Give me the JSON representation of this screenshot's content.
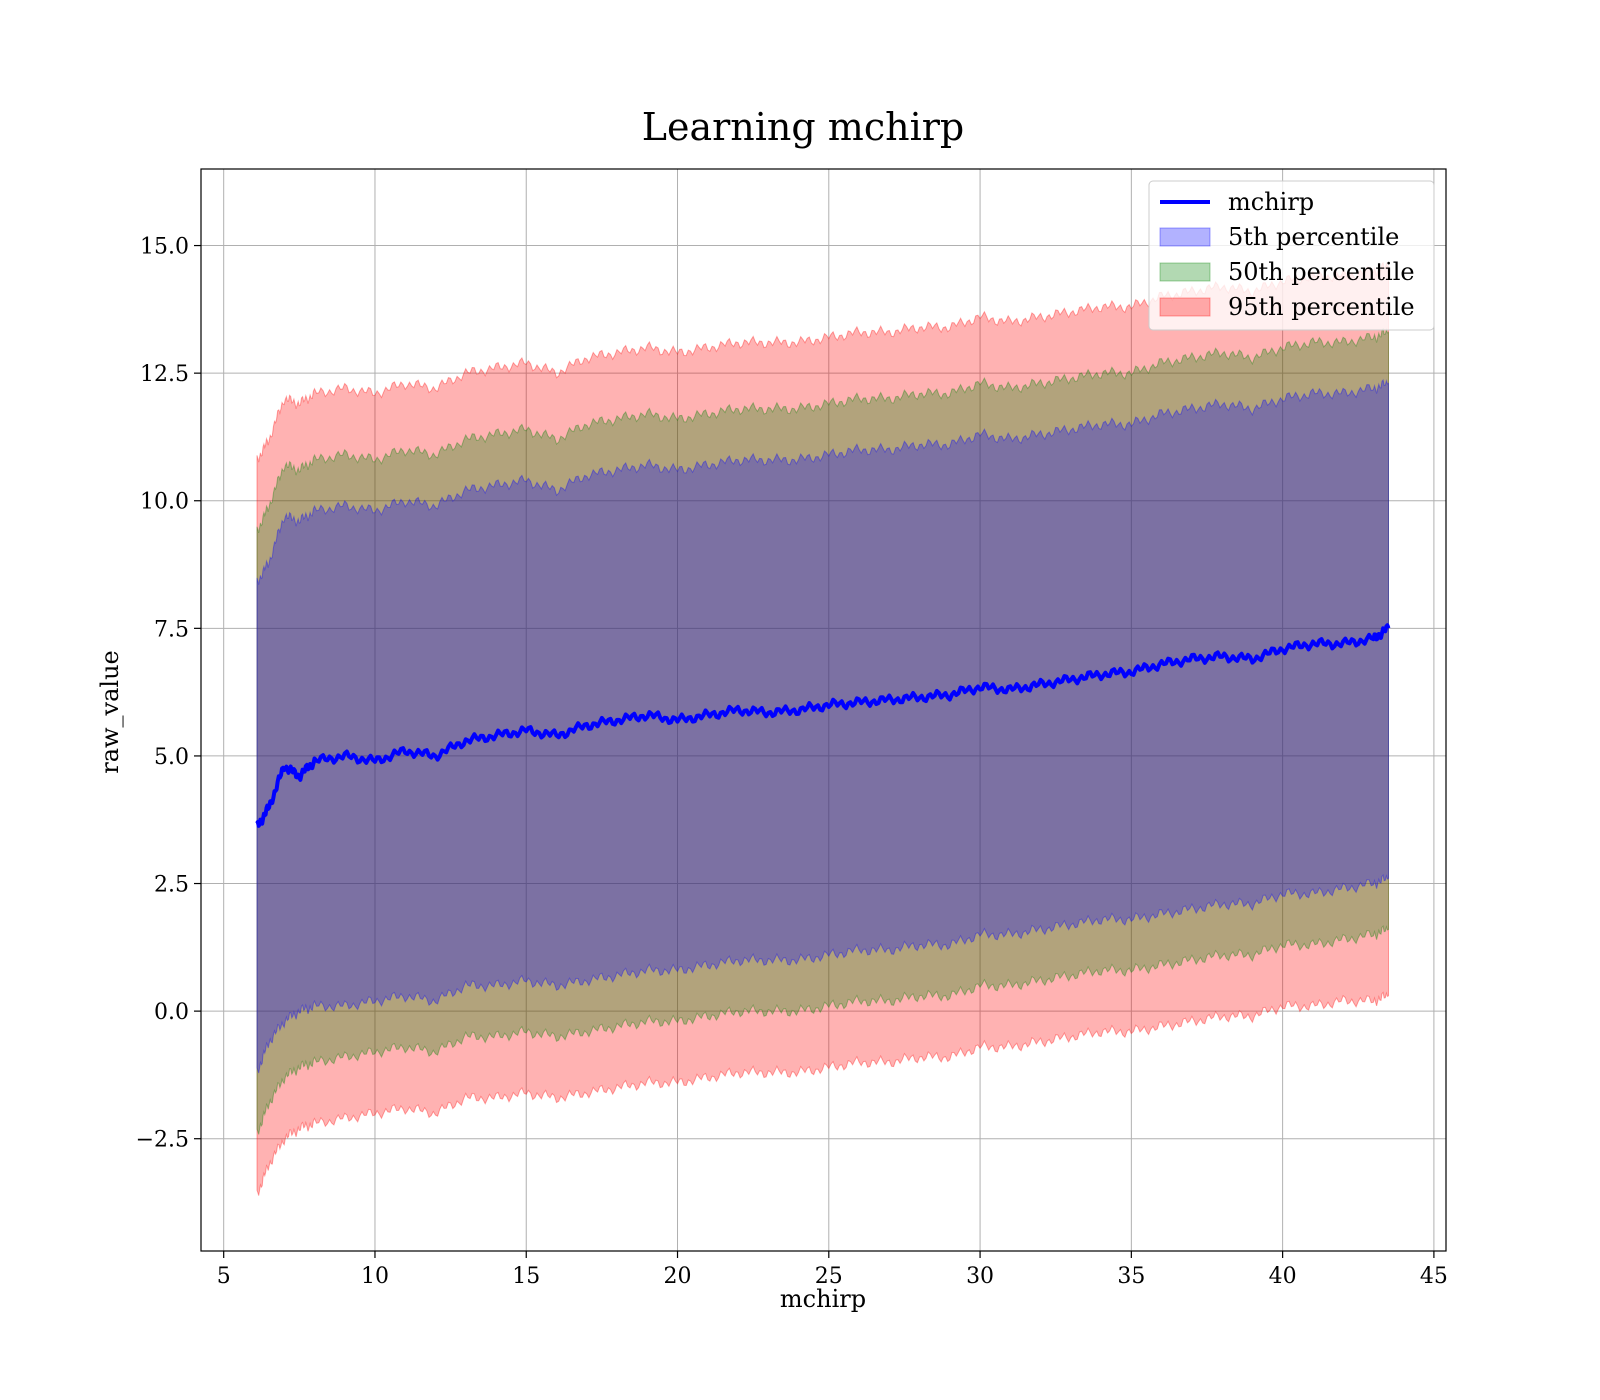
{
  "chart_data": {
    "type": "line",
    "title": "Learning mchirp",
    "xlabel": "mchirp",
    "ylabel": "raw_value",
    "xlim": [
      4.25,
      45.4
    ],
    "ylim": [
      -4.7,
      16.5
    ],
    "xticks": [
      5,
      10,
      15,
      20,
      25,
      30,
      35,
      40,
      45
    ],
    "xtick_labels": [
      "5",
      "10",
      "15",
      "20",
      "25",
      "30",
      "35",
      "40",
      "45"
    ],
    "yticks": [
      -2.5,
      0.0,
      2.5,
      5.0,
      7.5,
      10.0,
      12.5,
      15.0
    ],
    "ytick_labels": [
      "−2.5",
      "0.0",
      "2.5",
      "5.0",
      "7.5",
      "10.0",
      "12.5",
      "15.0"
    ],
    "grid": true,
    "legend_position": "top-right",
    "legend": [
      {
        "label": "mchirp",
        "kind": "line",
        "color": "#0000ff"
      },
      {
        "label": "5th percentile",
        "kind": "band",
        "color": "#0000ff"
      },
      {
        "label": "50th percentile",
        "kind": "band",
        "color": "#008000"
      },
      {
        "label": "95th percentile",
        "kind": "band",
        "color": "#ff0000"
      }
    ],
    "x": [
      6.1,
      6.5,
      7.0,
      7.5,
      8,
      9,
      10,
      11,
      12,
      13,
      14,
      15,
      16,
      17,
      18,
      19,
      20,
      21,
      22,
      23,
      24,
      25,
      26,
      27,
      28,
      29,
      30,
      31,
      32,
      33,
      34,
      35,
      36,
      37,
      38,
      39,
      40,
      41,
      42,
      43,
      43.5
    ],
    "series": [
      {
        "name": "mchirp",
        "color": "#0000ff",
        "values": [
          3.6,
          4.0,
          4.8,
          4.6,
          4.9,
          5.0,
          4.9,
          5.1,
          5.0,
          5.3,
          5.4,
          5.5,
          5.4,
          5.6,
          5.7,
          5.8,
          5.7,
          5.8,
          5.9,
          5.85,
          5.9,
          6.0,
          6.05,
          6.1,
          6.15,
          6.2,
          6.35,
          6.3,
          6.4,
          6.5,
          6.6,
          6.65,
          6.8,
          6.9,
          6.95,
          6.9,
          7.1,
          7.2,
          7.2,
          7.3,
          7.5
        ]
      },
      {
        "name": "5th percentile",
        "color": "#0000ff",
        "lower": [
          -1.2,
          -0.6,
          -0.2,
          0.0,
          0.1,
          0.1,
          0.2,
          0.3,
          0.2,
          0.5,
          0.5,
          0.6,
          0.5,
          0.6,
          0.7,
          0.8,
          0.8,
          0.9,
          1.0,
          1.0,
          1.0,
          1.1,
          1.2,
          1.2,
          1.3,
          1.3,
          1.5,
          1.5,
          1.6,
          1.7,
          1.8,
          1.8,
          1.9,
          2.0,
          2.1,
          2.1,
          2.3,
          2.3,
          2.4,
          2.5,
          2.6
        ],
        "upper": [
          8.4,
          8.8,
          9.7,
          9.6,
          9.8,
          9.9,
          9.8,
          10.0,
          9.9,
          10.2,
          10.3,
          10.4,
          10.2,
          10.5,
          10.6,
          10.7,
          10.6,
          10.7,
          10.8,
          10.8,
          10.8,
          10.9,
          11.0,
          11.0,
          11.1,
          11.1,
          11.3,
          11.2,
          11.3,
          11.4,
          11.5,
          11.5,
          11.7,
          11.8,
          11.9,
          11.8,
          12.0,
          12.1,
          12.1,
          12.2,
          12.3
        ]
      },
      {
        "name": "50th percentile",
        "color": "#008000",
        "lower": [
          -2.4,
          -1.8,
          -1.3,
          -1.1,
          -1.0,
          -0.9,
          -0.8,
          -0.7,
          -0.8,
          -0.5,
          -0.5,
          -0.4,
          -0.5,
          -0.4,
          -0.3,
          -0.2,
          -0.2,
          -0.1,
          0.0,
          0.0,
          0.0,
          0.1,
          0.2,
          0.2,
          0.3,
          0.3,
          0.5,
          0.5,
          0.6,
          0.7,
          0.8,
          0.8,
          0.9,
          1.0,
          1.1,
          1.1,
          1.3,
          1.3,
          1.4,
          1.5,
          1.6
        ],
        "upper": [
          9.4,
          9.9,
          10.7,
          10.6,
          10.8,
          10.9,
          10.8,
          11.0,
          10.9,
          11.2,
          11.3,
          11.4,
          11.2,
          11.5,
          11.6,
          11.7,
          11.6,
          11.7,
          11.8,
          11.8,
          11.8,
          11.9,
          12.0,
          12.0,
          12.1,
          12.1,
          12.3,
          12.2,
          12.3,
          12.4,
          12.5,
          12.5,
          12.7,
          12.8,
          12.9,
          12.8,
          13.0,
          13.1,
          13.1,
          13.2,
          13.3
        ]
      },
      {
        "name": "95th percentile",
        "color": "#ff0000",
        "lower": [
          -3.6,
          -3.0,
          -2.5,
          -2.3,
          -2.2,
          -2.1,
          -2.0,
          -1.9,
          -2.0,
          -1.7,
          -1.7,
          -1.6,
          -1.7,
          -1.6,
          -1.5,
          -1.4,
          -1.4,
          -1.3,
          -1.2,
          -1.2,
          -1.2,
          -1.1,
          -1.0,
          -1.0,
          -0.9,
          -0.9,
          -0.7,
          -0.7,
          -0.6,
          -0.5,
          -0.4,
          -0.4,
          -0.3,
          -0.2,
          -0.1,
          -0.1,
          0.1,
          0.1,
          0.2,
          0.2,
          0.3
        ],
        "upper": [
          10.8,
          11.2,
          12.0,
          11.9,
          12.1,
          12.2,
          12.1,
          12.3,
          12.2,
          12.5,
          12.6,
          12.7,
          12.5,
          12.8,
          12.9,
          13.0,
          12.9,
          13.0,
          13.1,
          13.1,
          13.1,
          13.2,
          13.3,
          13.3,
          13.4,
          13.4,
          13.6,
          13.5,
          13.6,
          13.7,
          13.8,
          13.8,
          14.0,
          14.1,
          14.2,
          14.1,
          14.3,
          14.4,
          14.4,
          14.5,
          14.6
        ]
      }
    ]
  }
}
